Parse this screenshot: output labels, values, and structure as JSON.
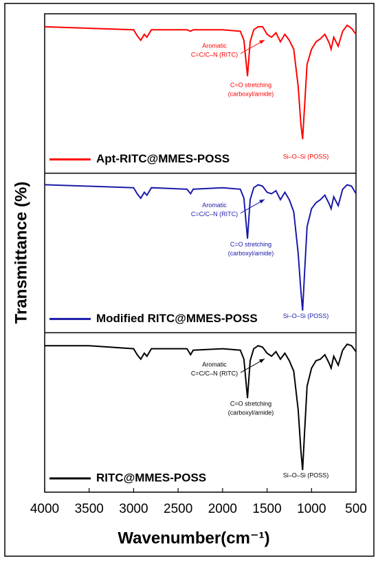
{
  "chart_data": {
    "type": "line",
    "layout": "stacked",
    "xlabel": "Wavenumber(cm⁻¹)",
    "ylabel": "Transmittance (%)",
    "xlim": [
      4000,
      500
    ],
    "xticks": [
      4000,
      3500,
      3000,
      2500,
      2000,
      1500,
      1000,
      500
    ],
    "ylim": [
      0,
      100
    ],
    "x": [
      4000,
      3500,
      3000,
      2960,
      2920,
      2880,
      2850,
      2800,
      2400,
      2360,
      2330,
      2000,
      1800,
      1760,
      1720,
      1690,
      1650,
      1600,
      1550,
      1500,
      1450,
      1400,
      1350,
      1300,
      1250,
      1200,
      1150,
      1120,
      1100,
      1080,
      1050,
      1000,
      950,
      900,
      850,
      800,
      780,
      750,
      700,
      650,
      600,
      550,
      500
    ],
    "series": [
      {
        "name": "Apt-RITC@MMES-POSS",
        "color": "#ff0000",
        "values": [
          95,
          94,
          93,
          89,
          86,
          90,
          88,
          93,
          93,
          92,
          93,
          93,
          92,
          86,
          62,
          85,
          93,
          95,
          95,
          90,
          88,
          91,
          85,
          90,
          86,
          80,
          55,
          30,
          20,
          40,
          70,
          80,
          85,
          87,
          90,
          84,
          80,
          88,
          82,
          92,
          96,
          94,
          90
        ],
        "annotations": [
          [
            "Aromatic",
            "C=C/C–N (RITC)"
          ],
          [
            "C=O stretching",
            "(carboxyl/amide)"
          ],
          [
            "Si–O–Si (POSS)"
          ]
        ]
      },
      {
        "name": "Modified RITC@MMES-POSS",
        "color": "#1a1aa8",
        "values": [
          96,
          95,
          94,
          90,
          87,
          91,
          89,
          94,
          93,
          90,
          93,
          94,
          93,
          87,
          60,
          86,
          94,
          96,
          95,
          91,
          90,
          92,
          86,
          91,
          86,
          78,
          50,
          25,
          12,
          35,
          68,
          80,
          84,
          86,
          89,
          83,
          80,
          88,
          82,
          93,
          96,
          95,
          90
        ],
        "annotations": [
          [
            "Aromatic",
            "C=C/C–N (RITC)"
          ],
          [
            "C=O stretching",
            "(carboxyl/amide)"
          ],
          [
            "Si–O–Si (POSS)"
          ]
        ]
      },
      {
        "name": "RITC@MMES-POSS",
        "color": "#000000",
        "values": [
          95,
          95,
          93,
          89,
          86,
          90,
          88,
          93,
          93,
          89,
          92,
          93,
          92,
          86,
          60,
          85,
          93,
          95,
          94,
          90,
          88,
          91,
          86,
          90,
          85,
          78,
          52,
          25,
          12,
          35,
          68,
          80,
          85,
          86,
          89,
          83,
          80,
          88,
          82,
          92,
          96,
          95,
          91
        ],
        "annotations": [
          [
            "Aromatic",
            "C=C/C–N (RITC)"
          ],
          [
            "C=O stretching",
            "(carboxyl/amide)"
          ],
          [
            "Si–O–Si (POSS)"
          ]
        ]
      }
    ]
  }
}
